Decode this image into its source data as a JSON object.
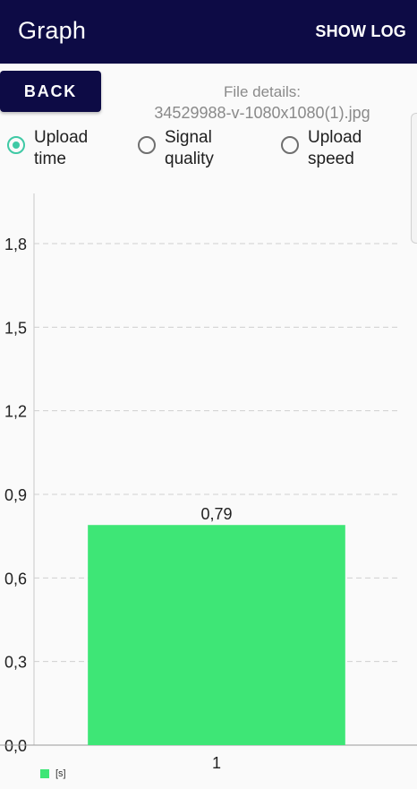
{
  "appbar": {
    "title": "Graph",
    "action_label": "SHOW LOG"
  },
  "back_label": "BACK",
  "file": {
    "label": "File details:",
    "name": "34529988-v-1080x1080(1).jpg"
  },
  "radios": [
    {
      "label": "Upload\ntime",
      "checked": true
    },
    {
      "label": "Signal\nquality",
      "checked": false
    },
    {
      "label": "Upload\nspeed",
      "checked": false
    }
  ],
  "colors": {
    "appbar": "#0d0b45",
    "accent": "#3fc9a5",
    "bar": "#3ee676"
  },
  "legend": {
    "label": "[s]"
  },
  "chart_data": {
    "type": "bar",
    "categories": [
      "1"
    ],
    "series": [
      {
        "name": "[s]",
        "values": [
          0.79
        ]
      }
    ],
    "value_labels": [
      "0,79"
    ],
    "ylim": [
      0,
      1.98
    ],
    "yticks": [
      0,
      0.3,
      0.6,
      0.9,
      1.2,
      1.5,
      1.8
    ],
    "ytick_labels": [
      "0,0",
      "0,3",
      "0,6",
      "0,9",
      "1,2",
      "1,5",
      "1,8"
    ],
    "grid": true,
    "legend": "bottom-left",
    "xlabel": "",
    "ylabel": ""
  }
}
